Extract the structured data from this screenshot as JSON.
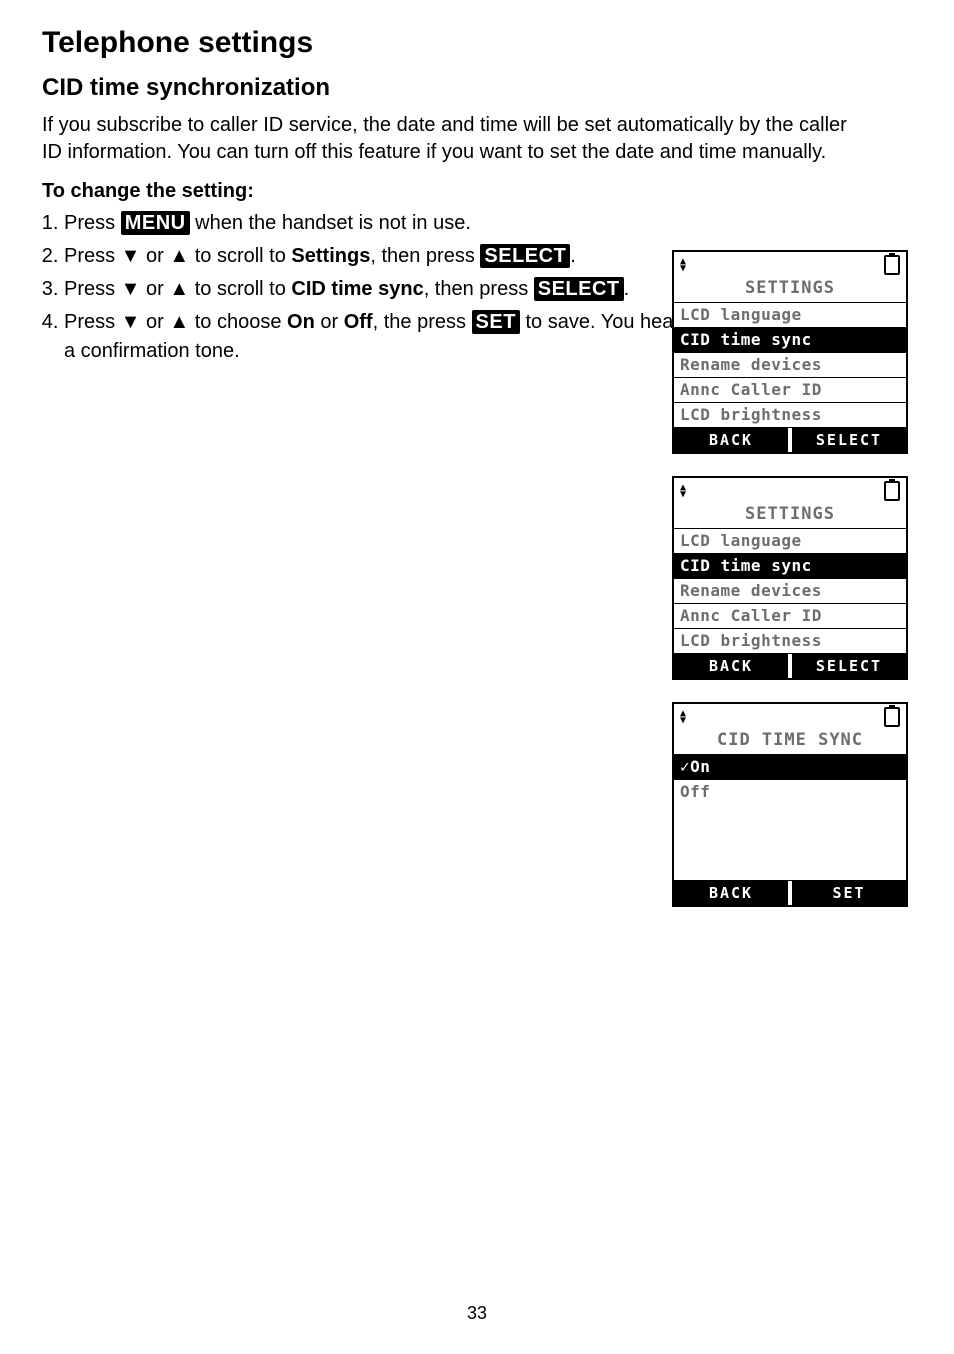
{
  "page_number": "33",
  "title": "Telephone settings",
  "subtitle": "CID time synchronization",
  "intro_paragraph": "If you subscribe to caller ID service, the date and time will be set automatically by the caller ID information. You can turn off this feature if you want to set the date and time manually.",
  "change_heading": "To change the setting:",
  "steps": {
    "s1": {
      "pre": "Press ",
      "btn": "MENU",
      "post": " when the handset is not in use."
    },
    "s2": {
      "pre": "Press ▼ or ▲ to scroll to ",
      "bold": "Settings",
      "mid": ", then press ",
      "btn": "SELECT",
      "post": "."
    },
    "s3": {
      "pre": "Press ▼ or ▲ to scroll to ",
      "bold": "CID time sync",
      "mid": ", then press ",
      "btn": "SELECT",
      "post": "."
    },
    "s4": {
      "pre": "Press ▼ or ▲ to choose ",
      "bold1": "On",
      "mid1": " or ",
      "bold2": "Off",
      "mid2": ", the press ",
      "btn": "SET",
      "post": " to save. You hear a confirmation tone."
    }
  },
  "screen1": {
    "title": "SETTINGS",
    "r1": "LCD language",
    "r2": "CID time sync",
    "r3": "Rename devices",
    "r4": "Annc Caller ID",
    "r5": "LCD brightness",
    "sk_left": "BACK",
    "sk_right": "SELECT"
  },
  "screen2": {
    "title": "SETTINGS",
    "r1": "LCD language",
    "r2": "CID time sync",
    "r3": "Rename devices",
    "r4": "Annc Caller ID",
    "r5": "LCD brightness",
    "sk_left": "BACK",
    "sk_right": "SELECT"
  },
  "screen3": {
    "title": "CID TIME SYNC",
    "r1": "✓On",
    "r2": " Off",
    "sk_left": "BACK",
    "sk_right": "SET"
  }
}
